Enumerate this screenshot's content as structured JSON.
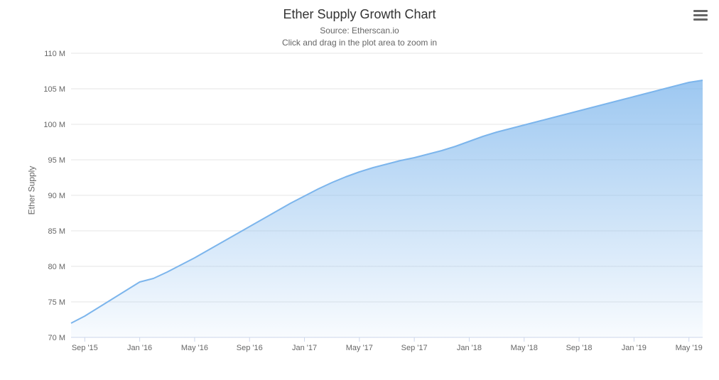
{
  "chart": {
    "type": "area",
    "title": "Ether Supply Growth Chart",
    "subtitle_line1": "Source: Etherscan.io",
    "subtitle_line2": "Click and drag in the plot area to zoom in",
    "y_axis_title": "Ether Supply",
    "menu_label": "Chart context menu",
    "background_color": "#ffffff",
    "title_fontsize": 18,
    "subtitle_fontsize": 12,
    "axis_label_fontsize": 11,
    "grid_color": "#e6e6e6",
    "axis_color": "#ccd6eb",
    "text_color": "#666666",
    "line_color": "#7cb5ec",
    "line_width": 2,
    "area_gradient_top": "rgba(124,181,236,0.75)",
    "area_gradient_bottom": "rgba(124,181,236,0.05)",
    "y_axis": {
      "min": 70,
      "max": 110,
      "ticks": [
        70,
        75,
        80,
        85,
        90,
        95,
        100,
        105,
        110
      ],
      "tick_labels": [
        "70 M",
        "75 M",
        "80 M",
        "85 M",
        "90 M",
        "95 M",
        "100 M",
        "105 M",
        "110 M"
      ]
    },
    "x_axis": {
      "tick_positions": [
        1,
        5,
        9,
        13,
        17,
        21,
        25,
        29,
        33,
        37,
        41,
        45
      ],
      "tick_labels": [
        "Sep '15",
        "Jan '16",
        "May '16",
        "Sep '16",
        "Jan '17",
        "May '17",
        "Sep '17",
        "Jan '18",
        "May '18",
        "Sep '18",
        "Jan '19",
        "May '19"
      ]
    },
    "series": {
      "name": "Ether Supply",
      "x": [
        0,
        1,
        2,
        3,
        4,
        5,
        6,
        7,
        8,
        9,
        10,
        11,
        12,
        13,
        14,
        15,
        16,
        17,
        18,
        19,
        20,
        21,
        22,
        23,
        24,
        25,
        26,
        27,
        28,
        29,
        30,
        31,
        32,
        33,
        34,
        35,
        36,
        37,
        38,
        39,
        40,
        41,
        42,
        43,
        44,
        45,
        46
      ],
      "y": [
        72.0,
        73.0,
        74.2,
        75.4,
        76.6,
        77.8,
        78.3,
        79.2,
        80.2,
        81.2,
        82.3,
        83.4,
        84.5,
        85.6,
        86.7,
        87.8,
        88.9,
        89.9,
        90.9,
        91.8,
        92.6,
        93.3,
        93.9,
        94.4,
        94.9,
        95.3,
        95.8,
        96.3,
        96.9,
        97.6,
        98.3,
        98.9,
        99.4,
        99.9,
        100.4,
        100.9,
        101.4,
        101.9,
        102.4,
        102.9,
        103.4,
        103.9,
        104.4,
        104.9,
        105.4,
        105.9,
        106.2
      ]
    }
  }
}
